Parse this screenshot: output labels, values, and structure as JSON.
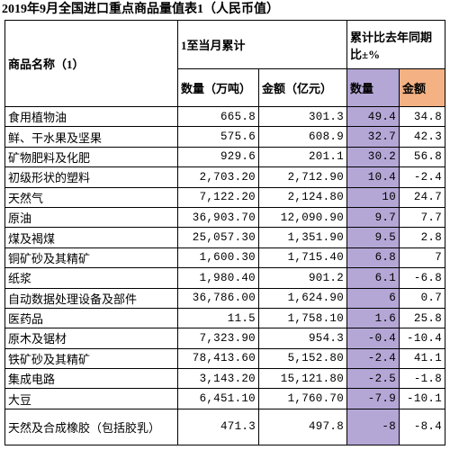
{
  "title": "2019年9月全国进口重点商品量值表1（人民币值）",
  "header": {
    "name": "商品名称（1）",
    "cumulative": "1至当月累计",
    "yoy": "累计比去年同期比±%",
    "qty": "数量（万吨）",
    "amount": "金额（亿元）",
    "yoy_qty": "数量",
    "yoy_amount": "金额"
  },
  "table": {
    "rows": [
      [
        "食用植物油",
        "665.8",
        "301.3",
        "49.4",
        "34.8"
      ],
      [
        "鲜、干水果及坚果",
        "575.6",
        "608.9",
        "32.7",
        "42.3"
      ],
      [
        "矿物肥料及化肥",
        "929.6",
        "201.1",
        "30.2",
        "56.8"
      ],
      [
        "初级形状的塑料",
        "2,703.20",
        "2,712.90",
        "10.4",
        "-2.4"
      ],
      [
        "天然气",
        "7,122.20",
        "2,124.80",
        "10",
        "24.7"
      ],
      [
        "原油",
        "36,903.70",
        "12,090.90",
        "9.7",
        "7.7"
      ],
      [
        "煤及褐煤",
        "25,057.30",
        "1,351.90",
        "9.5",
        "2.8"
      ],
      [
        "铜矿砂及其精矿",
        "1,600.30",
        "1,715.40",
        "6.8",
        "7"
      ],
      [
        "纸浆",
        "1,980.40",
        "901.2",
        "6.1",
        "-6.8"
      ],
      [
        "自动数据处理设备及部件",
        "36,786.00",
        "1,624.90",
        "6",
        "0.7"
      ],
      [
        "医药品",
        "11.5",
        "1,758.10",
        "1.6",
        "25.8"
      ],
      [
        "原木及锯材",
        "7,323.90",
        "954.3",
        "-0.4",
        "-10.4"
      ],
      [
        "铁矿砂及其精矿",
        "78,413.60",
        "5,152.80",
        "-2.4",
        "41.1"
      ],
      [
        "集成电路",
        "3,143.20",
        "15,121.80",
        "-2.5",
        "-1.8"
      ],
      [
        "大豆",
        "6,451.10",
        "1,760.70",
        "-7.9",
        "-10.1"
      ],
      [
        "天然及合成橡胶（包括胶乳）",
        "471.3",
        "497.8",
        "-8",
        "-8.4"
      ]
    ]
  }
}
